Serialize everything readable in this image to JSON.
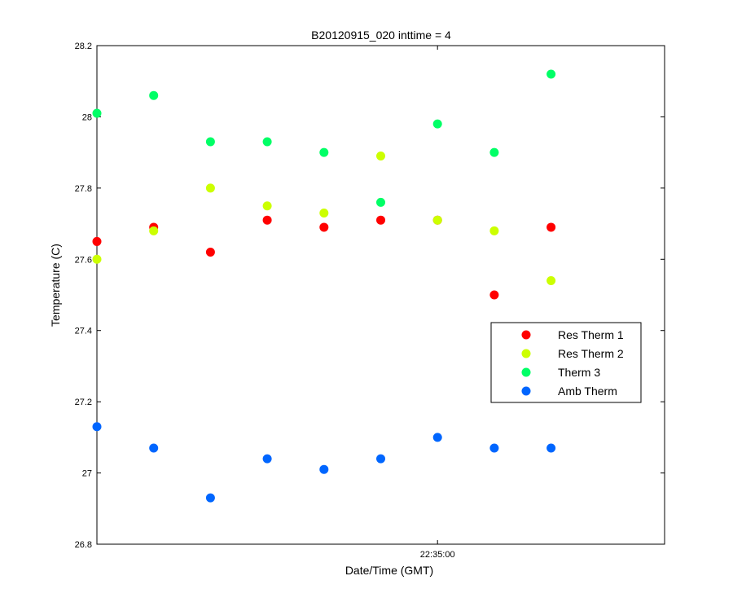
{
  "chart_data": {
    "type": "scatter",
    "title": "B20120915_020 inttime = 4",
    "xlabel": "Date/Time (GMT)",
    "ylabel": "Temperature (C)",
    "ylim": [
      26.8,
      28.2
    ],
    "yticks": [
      "26.8",
      "27",
      "27.2",
      "27.4",
      "27.6",
      "27.8",
      "28",
      "28.2"
    ],
    "xlim": [
      "22:34:42",
      "22:35:12"
    ],
    "xticks": [
      {
        "value": "22:35:00",
        "label": "22:35:00"
      }
    ],
    "grid": false,
    "legend_position": "right",
    "x": [
      "22:34:42",
      "22:34:45",
      "22:34:48",
      "22:34:51",
      "22:34:54",
      "22:34:57",
      "22:35:00",
      "22:35:03",
      "22:35:06"
    ],
    "x_plot": [
      0,
      3,
      6,
      9,
      12,
      15,
      18,
      21,
      24
    ],
    "series": [
      {
        "name": "Res Therm 1",
        "color": "#ff0000",
        "values": [
          27.65,
          27.69,
          27.62,
          27.71,
          27.69,
          27.71,
          27.71,
          27.5,
          27.69
        ]
      },
      {
        "name": "Res Therm 2",
        "color": "#ccff00",
        "values": [
          27.6,
          27.68,
          27.8,
          27.75,
          27.73,
          27.89,
          27.71,
          27.68,
          27.54
        ]
      },
      {
        "name": "Therm 3",
        "color": "#00ff66",
        "values": [
          28.01,
          28.06,
          27.93,
          27.93,
          27.9,
          27.76,
          27.98,
          27.9,
          28.12
        ]
      },
      {
        "name": "Amb Therm",
        "color": "#0066ff",
        "values": [
          27.13,
          27.07,
          26.93,
          27.04,
          27.01,
          27.04,
          27.1,
          27.07,
          27.07
        ]
      }
    ]
  }
}
